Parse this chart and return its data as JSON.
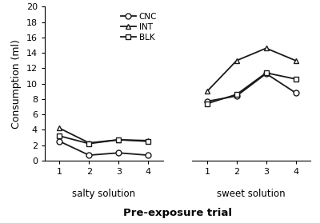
{
  "trials": [
    1,
    2,
    3,
    4
  ],
  "salty": {
    "CNC": [
      2.5,
      0.7,
      1.0,
      0.7
    ],
    "INT": [
      4.2,
      2.3,
      2.7,
      2.6
    ],
    "BLK": [
      3.2,
      2.2,
      2.7,
      2.5
    ]
  },
  "sweet": {
    "CNC": [
      7.7,
      8.4,
      11.3,
      8.8
    ],
    "INT": [
      9.0,
      13.0,
      14.6,
      13.0
    ],
    "BLK": [
      7.4,
      8.6,
      11.4,
      10.6
    ]
  },
  "ylim": [
    0,
    20
  ],
  "yticks": [
    0,
    2,
    4,
    6,
    8,
    10,
    12,
    14,
    16,
    18,
    20
  ],
  "ylabel": "Consumption (ml)",
  "xlabel": "Pre-exposure trial",
  "line_color": "#1a1a1a",
  "markers": {
    "CNC": "o",
    "INT": "^",
    "BLK": "s"
  },
  "legend_labels": [
    "CNC",
    "INT",
    "BLK"
  ],
  "salty_label": "salty solution",
  "sweet_label": "sweet solution",
  "markersize": 5,
  "linewidth": 1.3
}
